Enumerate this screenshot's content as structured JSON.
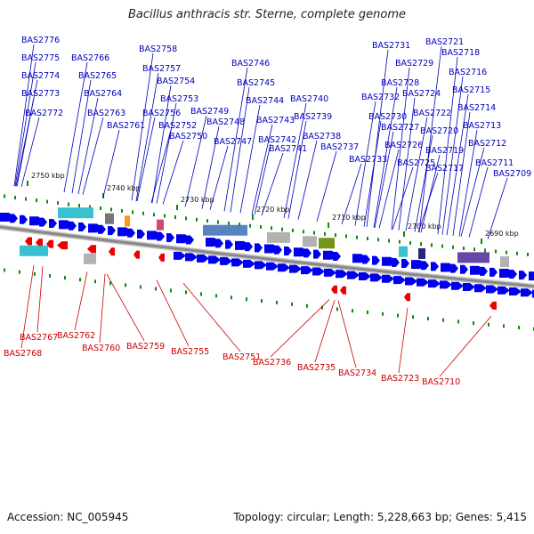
{
  "title": "Bacillus anthracis str. Sterne, complete genome",
  "footer": {
    "accession": "Accession: NC_005945",
    "summary": "Topology: circular; Length: 5,228,663 bp; Genes: 5,415"
  },
  "colors": {
    "forward": "#0000ee",
    "reverse": "#ee0000",
    "tick": "#0a8a0a",
    "backbone": "#888888",
    "forward_label": "#0000bb",
    "reverse_label": "#cc0000"
  },
  "scale_labels": [
    "2750 kbp",
    "2740 kbp",
    "2730 kbp",
    "2720 kbp",
    "2710 kbp",
    "2700 kbp",
    "2690 kbp"
  ],
  "forward_genes": [
    "BAS2776",
    "BAS2775",
    "BAS2774",
    "BAS2773",
    "BAS2772",
    "BAS2766",
    "BAS2765",
    "BAS2764",
    "BAS2763",
    "BAS2761",
    "BAS2758",
    "BAS2757",
    "BAS2756",
    "BAS2754",
    "BAS2753",
    "BAS2752",
    "BAS2750",
    "BAS2749",
    "BAS2748",
    "BAS2747",
    "BAS2746",
    "BAS2745",
    "BAS2744",
    "BAS2743",
    "BAS2742",
    "BAS2741",
    "BAS2740",
    "BAS2739",
    "BAS2738",
    "BAS2737",
    "BAS2733",
    "BAS2732",
    "BAS2731",
    "BAS2730",
    "BAS2729",
    "BAS2728",
    "BAS2727",
    "BAS2726",
    "BAS2725",
    "BAS2724",
    "BAS2722",
    "BAS2721",
    "BAS2720",
    "BAS2719",
    "BAS2718",
    "BAS2717",
    "BAS2716",
    "BAS2715",
    "BAS2714",
    "BAS2713",
    "BAS2712",
    "BAS2711",
    "BAS2709"
  ],
  "reverse_genes": [
    "BAS2768",
    "BAS2767",
    "BAS2762",
    "BAS2760",
    "BAS2759",
    "BAS2755",
    "BAS2751",
    "BAS2736",
    "BAS2735",
    "BAS2734",
    "BAS2723",
    "BAS2710"
  ]
}
